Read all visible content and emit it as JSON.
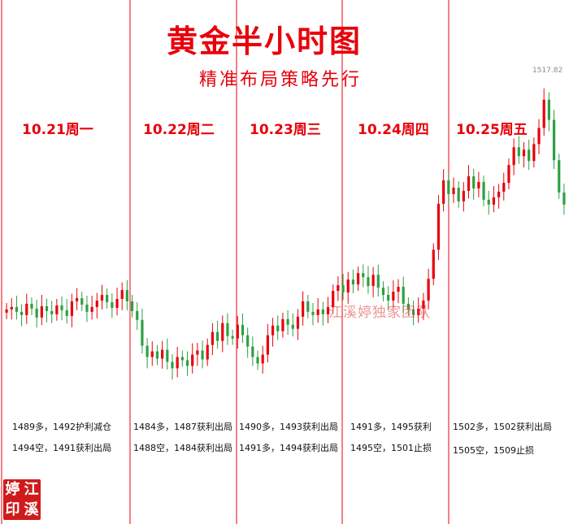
{
  "header": {
    "title": "黄金半小时图",
    "subtitle": "精准布局策略先行"
  },
  "days": [
    {
      "label": "10.21周一",
      "notes": [
        "1489多，1492护利减仓",
        "1494空，1491获利出局"
      ]
    },
    {
      "label": "10.22周二",
      "notes": [
        "1484多，1487获利出局",
        "1488空，1484获利出局"
      ]
    },
    {
      "label": "10.23周三",
      "notes": [
        "1490多，1493获利出局",
        "1491多，1494获利出局"
      ]
    },
    {
      "label": "10.24周四",
      "notes": [
        "1491多，1495获利",
        "1495空，1501止损"
      ]
    },
    {
      "label": "10.25周五",
      "notes": [
        "1502多，1502获利出局",
        "1505空，1509止损"
      ]
    }
  ],
  "watermark": "江溪婷独家团队",
  "seal": [
    "婷",
    "江",
    "印",
    "溪"
  ],
  "colors": {
    "up": "#e8000b",
    "down": "#2ea043",
    "divider": "#e8000b"
  },
  "chart_data": {
    "type": "line",
    "peak_label": "1517.82",
    "ylim": [
      1478,
      1520
    ],
    "series": [
      {
        "values": [
          1490.5,
          1490.8,
          1490.2,
          1489.8,
          1491.2,
          1490.6,
          1489.5,
          1490.9,
          1490.3,
          1489.9,
          1491.0,
          1490.4,
          1489.7,
          1491.5,
          1491.9,
          1491.1,
          1490.2,
          1490.8,
          1491.6,
          1492.3,
          1491.4,
          1490.7,
          1491.8,
          1492.9,
          1491.5,
          1490.3,
          1489.2,
          1486.0,
          1484.6,
          1485.3,
          1484.4,
          1485.5,
          1484.0,
          1483.2,
          1484.6,
          1484.2,
          1483.5,
          1484.9,
          1485.4,
          1484.3,
          1486.1,
          1487.7,
          1486.6,
          1488.8,
          1487.2,
          1486.9,
          1488.6,
          1487.3,
          1485.9,
          1484.6,
          1483.8,
          1484.9,
          1487.3,
          1488.5,
          1487.8,
          1489.3,
          1488.6,
          1488.1,
          1489.6,
          1491.5,
          1490.2,
          1489.8,
          1490.5,
          1489.9,
          1490.8,
          1492.8,
          1493.5,
          1492.6,
          1494.2,
          1493.6,
          1495.0,
          1494.5,
          1493.4,
          1494.8,
          1493.2,
          1492.3,
          1491.6,
          1492.7,
          1493.3,
          1491.2,
          1490.5,
          1489.8,
          1490.6,
          1491.6,
          1494.3,
          1497.9,
          1503.6,
          1506.5,
          1504.8,
          1505.6,
          1503.9,
          1505.2,
          1507.0,
          1505.5,
          1506.3,
          1504.1,
          1503.5,
          1504.4,
          1505.1,
          1506.2,
          1508.4,
          1510.6,
          1509.5,
          1510.3,
          1508.9,
          1511.0,
          1513.0,
          1516.5,
          1514.0,
          1509.0,
          1505.0,
          1503.5
        ]
      }
    ]
  }
}
